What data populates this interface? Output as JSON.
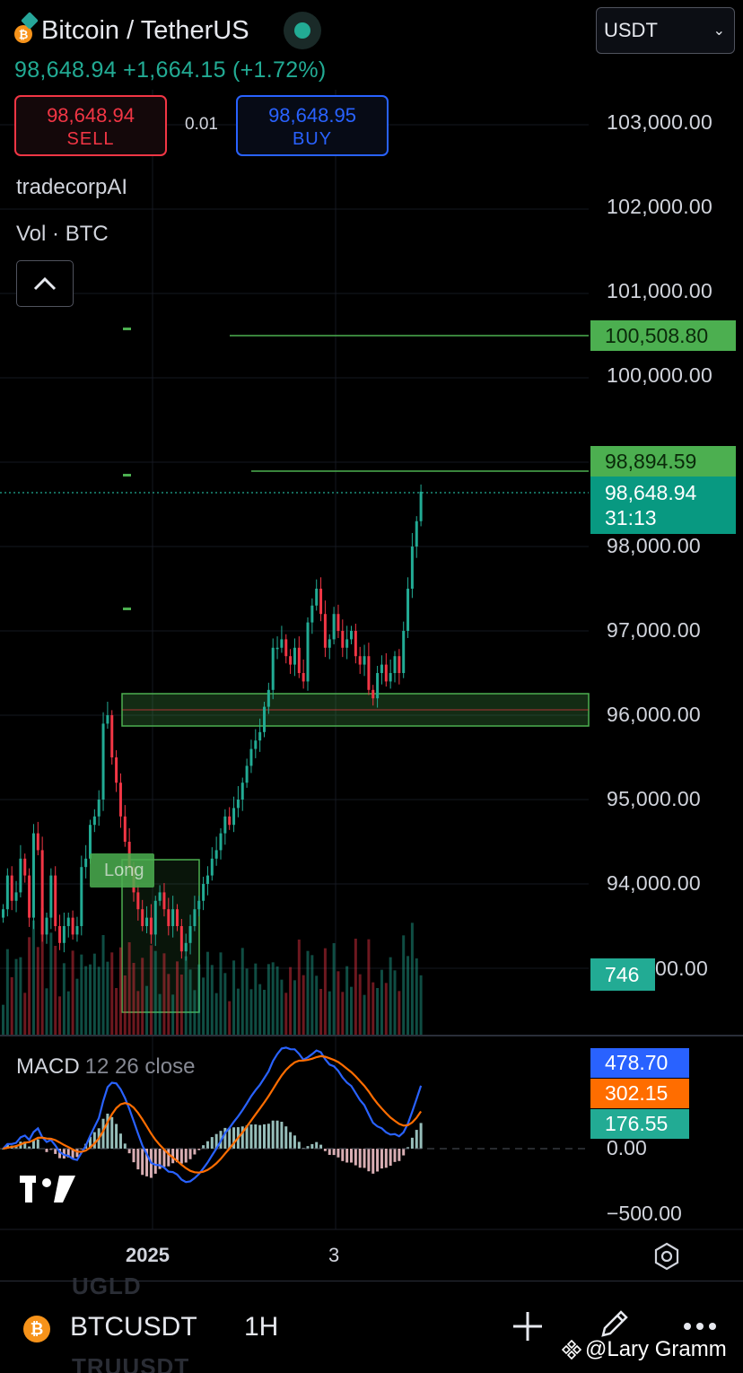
{
  "header": {
    "title": "Bitcoin / TetherUS",
    "coin_glyph": "₿",
    "currency": "USDT",
    "price_line": "98,648.94 +1,664.15 (+1.72%)",
    "accent_up": "#22ab94",
    "accent_down": "#f23645"
  },
  "trade": {
    "sell_price": "98,648.94",
    "sell_label": "SELL",
    "spread": "0.01",
    "buy_price": "98,648.95",
    "buy_label": "BUY"
  },
  "indicators": {
    "script_name": "tradecorpAI",
    "volume": "Vol · BTC"
  },
  "price_axis": {
    "labels": [
      "103,000.00",
      "102,000.00",
      "101,000.00",
      "100,000.00",
      "98,000.00",
      "97,000.00",
      "96,000.00",
      "95,000.00",
      "94,000.00",
      "00.00"
    ]
  },
  "tags": {
    "alert1": "100,508.80",
    "alert2": "98,894.59",
    "last_price": "98,648.94",
    "countdown": "31:13",
    "volume": "746"
  },
  "chart": {
    "long_label": "Long"
  },
  "macd": {
    "title": "MACD",
    "params": "12 26 close",
    "macd_value": "478.70",
    "signal_value": "302.15",
    "hist_value": "176.55",
    "axis_zero": "0.00",
    "axis_neg": "−500.00",
    "colors": {
      "macd": "#2962ff",
      "signal": "#ff6d00",
      "hist": "#22ab94"
    }
  },
  "time_axis": {
    "year": "2025",
    "day": "3"
  },
  "ghost": {
    "top": "UGLD",
    "bottom": "TRUUSDT"
  },
  "bottom_bar": {
    "symbol": "BTCUSDT",
    "interval": "1H",
    "watermark": "@Lary Gramm"
  },
  "chart_data": {
    "type": "candlestick",
    "symbol": "BTCUSDT",
    "interval": "1H",
    "price_range": [
      92800,
      103400
    ],
    "last_price": 98648.94,
    "alert_levels": [
      100508.8,
      98894.59
    ],
    "zone": [
      95900,
      96280
    ],
    "closes": [
      93700,
      94100,
      93800,
      93900,
      94300,
      94100,
      93600,
      94600,
      94400,
      93400,
      93600,
      94100,
      93500,
      93300,
      93500,
      93600,
      93400,
      93500,
      94200,
      94300,
      94700,
      94800,
      95000,
      95900,
      96000,
      95500,
      95200,
      94800,
      94500,
      94200,
      93900,
      93700,
      93500,
      93600,
      93400,
      93800,
      93900,
      93700,
      93500,
      93700,
      93500,
      93200,
      93300,
      93500,
      93700,
      93800,
      94000,
      94100,
      94300,
      94400,
      94600,
      94800,
      94700,
      94900,
      95000,
      95200,
      95400,
      95600,
      95700,
      95800,
      96100,
      96300,
      96800,
      96800,
      96900,
      96700,
      96600,
      96800,
      96500,
      96400,
      97100,
      97300,
      97500,
      97200,
      96800,
      96900,
      97200,
      97000,
      96800,
      96900,
      97000,
      96700,
      96600,
      96700,
      96300,
      96200,
      96500,
      96600,
      96400,
      96500,
      96700,
      96500,
      97000,
      97500,
      98000,
      98300,
      98650
    ]
  }
}
